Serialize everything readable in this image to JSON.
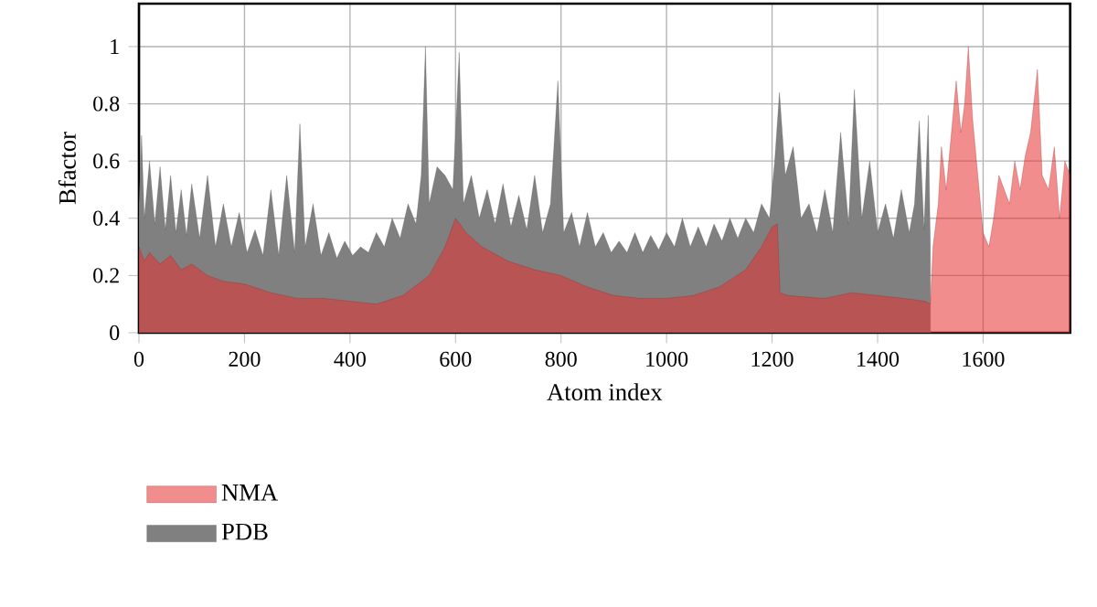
{
  "chart_data": {
    "type": "area",
    "xlabel": "Atom index",
    "ylabel": "Bfactor",
    "xlim": [
      0,
      1765
    ],
    "ylim": [
      0,
      1.15
    ],
    "xticks": [
      0,
      200,
      400,
      600,
      800,
      1000,
      1200,
      1400,
      1600
    ],
    "yticks": [
      0,
      0.2,
      0.4,
      0.6,
      0.8,
      1
    ],
    "grid": true,
    "legend": "bottom left",
    "series": [
      {
        "name": "NMA",
        "color": "#e83030",
        "x": [
          0,
          10,
          20,
          40,
          60,
          80,
          100,
          130,
          160,
          200,
          250,
          300,
          350,
          400,
          450,
          500,
          550,
          580,
          600,
          620,
          650,
          700,
          750,
          800,
          850,
          900,
          950,
          1000,
          1050,
          1100,
          1150,
          1180,
          1200,
          1210,
          1215,
          1230,
          1300,
          1350,
          1400,
          1450,
          1490,
          1500,
          1505,
          1515,
          1521,
          1530,
          1540,
          1549,
          1558,
          1565,
          1572,
          1580,
          1590,
          1600,
          1611,
          1620,
          1630,
          1640,
          1650,
          1660,
          1670,
          1680,
          1690,
          1703,
          1712,
          1724,
          1735,
          1745,
          1755,
          1765
        ],
        "values": [
          0.3,
          0.25,
          0.28,
          0.24,
          0.27,
          0.22,
          0.24,
          0.2,
          0.18,
          0.17,
          0.14,
          0.12,
          0.12,
          0.11,
          0.1,
          0.13,
          0.2,
          0.3,
          0.4,
          0.35,
          0.3,
          0.25,
          0.22,
          0.2,
          0.16,
          0.13,
          0.12,
          0.12,
          0.13,
          0.16,
          0.22,
          0.3,
          0.37,
          0.38,
          0.14,
          0.13,
          0.12,
          0.14,
          0.13,
          0.12,
          0.11,
          0.1,
          0.3,
          0.45,
          0.65,
          0.5,
          0.7,
          0.88,
          0.7,
          0.8,
          1.0,
          0.75,
          0.55,
          0.35,
          0.3,
          0.4,
          0.55,
          0.5,
          0.45,
          0.6,
          0.5,
          0.62,
          0.7,
          0.92,
          0.55,
          0.5,
          0.65,
          0.4,
          0.6,
          0.55
        ]
      },
      {
        "name": "PDB",
        "color": "#808080",
        "x": [
          0,
          5,
          10,
          20,
          30,
          40,
          50,
          60,
          70,
          80,
          90,
          100,
          115,
          130,
          145,
          160,
          175,
          190,
          205,
          220,
          235,
          250,
          265,
          280,
          295,
          305,
          315,
          330,
          345,
          360,
          375,
          390,
          405,
          420,
          435,
          450,
          465,
          480,
          495,
          510,
          525,
          535,
          543,
          550,
          565,
          580,
          595,
          607,
          615,
          630,
          645,
          660,
          675,
          690,
          705,
          720,
          735,
          750,
          765,
          780,
          794,
          805,
          820,
          835,
          850,
          865,
          880,
          895,
          910,
          925,
          940,
          955,
          970,
          985,
          1000,
          1015,
          1030,
          1045,
          1060,
          1075,
          1090,
          1105,
          1120,
          1135,
          1150,
          1165,
          1180,
          1195,
          1205,
          1214,
          1225,
          1240,
          1255,
          1270,
          1285,
          1300,
          1315,
          1330,
          1345,
          1356,
          1370,
          1385,
          1400,
          1415,
          1430,
          1445,
          1460,
          1470,
          1479,
          1488,
          1496,
          1500
        ],
        "values": [
          0.45,
          0.69,
          0.4,
          0.6,
          0.38,
          0.58,
          0.36,
          0.55,
          0.35,
          0.5,
          0.34,
          0.52,
          0.33,
          0.55,
          0.3,
          0.45,
          0.3,
          0.42,
          0.28,
          0.36,
          0.27,
          0.5,
          0.27,
          0.55,
          0.28,
          0.73,
          0.3,
          0.45,
          0.27,
          0.35,
          0.26,
          0.32,
          0.27,
          0.3,
          0.28,
          0.35,
          0.3,
          0.4,
          0.33,
          0.45,
          0.38,
          0.55,
          1.0,
          0.45,
          0.58,
          0.55,
          0.5,
          0.98,
          0.45,
          0.55,
          0.4,
          0.5,
          0.38,
          0.52,
          0.37,
          0.48,
          0.36,
          0.55,
          0.35,
          0.45,
          0.88,
          0.35,
          0.42,
          0.3,
          0.42,
          0.3,
          0.35,
          0.28,
          0.32,
          0.28,
          0.35,
          0.28,
          0.34,
          0.29,
          0.35,
          0.3,
          0.4,
          0.3,
          0.37,
          0.3,
          0.38,
          0.32,
          0.4,
          0.33,
          0.4,
          0.35,
          0.45,
          0.4,
          0.6,
          0.84,
          0.55,
          0.65,
          0.4,
          0.45,
          0.35,
          0.5,
          0.35,
          0.7,
          0.38,
          0.85,
          0.4,
          0.6,
          0.35,
          0.45,
          0.33,
          0.5,
          0.35,
          0.45,
          0.74,
          0.36,
          0.76,
          0.3
        ]
      }
    ]
  }
}
